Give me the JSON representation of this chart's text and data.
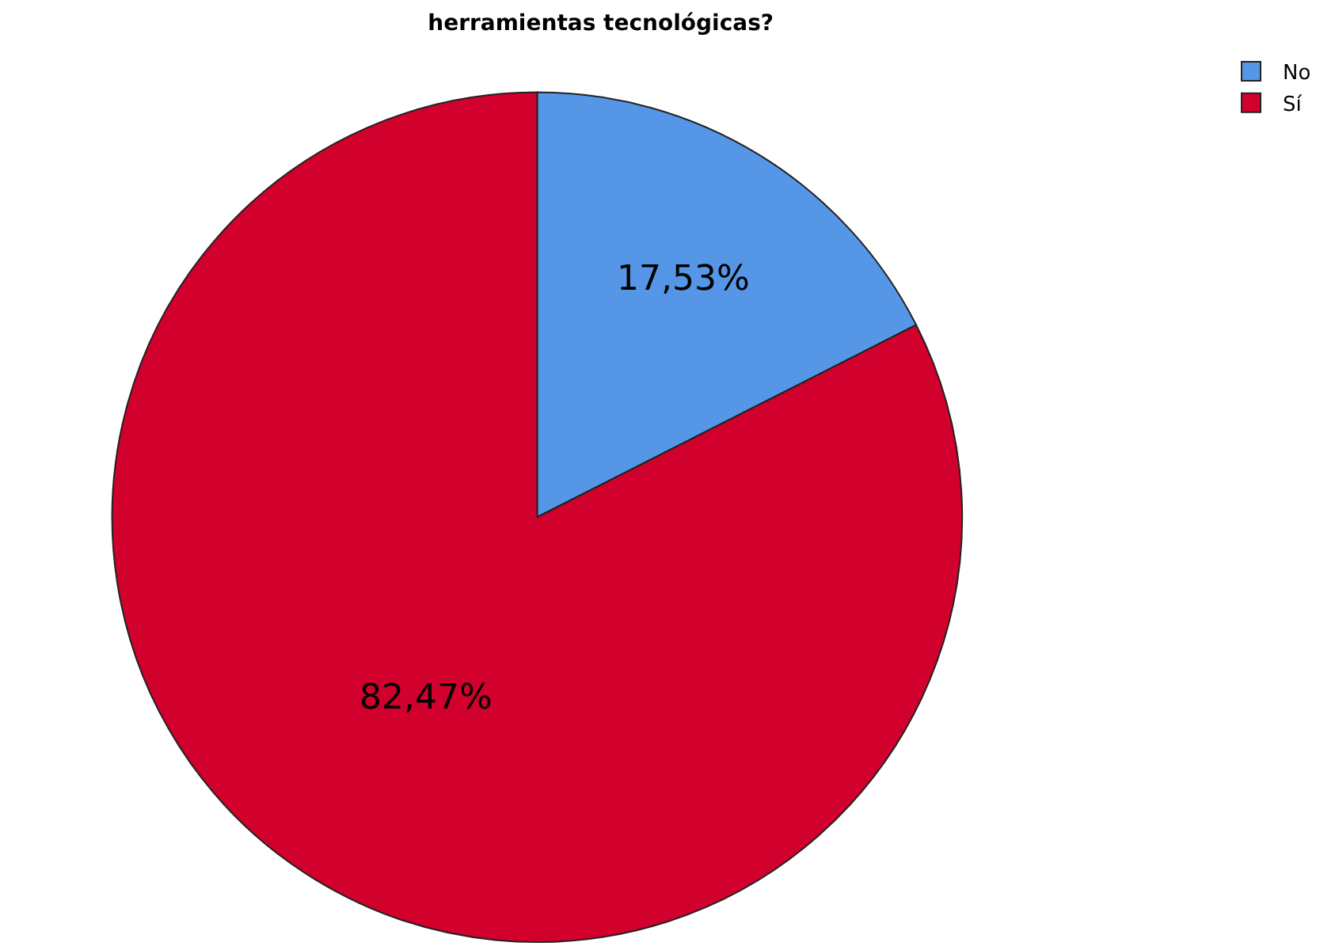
{
  "chart_data": {
    "type": "pie",
    "title": "herramientas tecnológicas?",
    "categories": [
      "No",
      "Sí"
    ],
    "values": [
      17.53,
      82.47
    ],
    "colors": [
      "#5596e6",
      "#d2002c"
    ],
    "value_labels": [
      "17,53%",
      "82,47%"
    ],
    "legend": "top right"
  }
}
